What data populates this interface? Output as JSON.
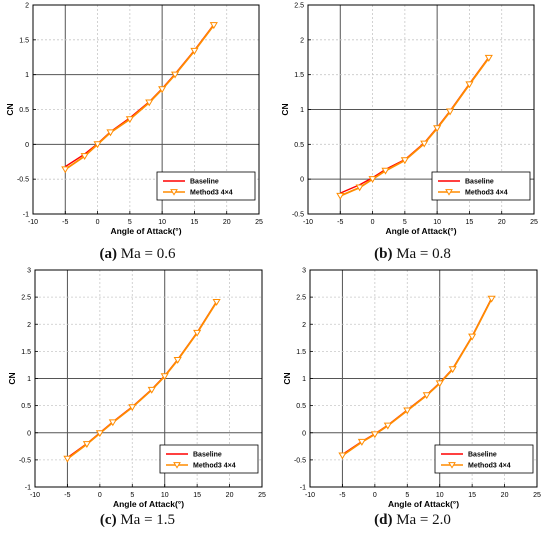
{
  "chart_data": [
    {
      "type": "line",
      "panel_tag": "a",
      "caption": "Ma = 0.6",
      "xlabel": "Angle of Attack(°)",
      "ylabel": "CN",
      "xlim": [
        -10,
        25
      ],
      "ylim": [
        -1,
        2
      ],
      "xticks": [
        -10,
        -5,
        0,
        5,
        10,
        15,
        20,
        25
      ],
      "yticks": [
        -1,
        -0.5,
        0,
        0.5,
        1,
        1.5,
        2
      ],
      "tick_labels_y": [
        "-1",
        "-0.5",
        "0",
        "0.5",
        "1",
        "1.5",
        "2"
      ],
      "grid": true,
      "legend_position": "bottom-right",
      "series": [
        {
          "name": "Baseline",
          "color": "#ff0000",
          "marker": "none",
          "x": [
            -5,
            -2,
            0,
            2,
            5,
            8,
            10,
            12,
            15,
            18
          ],
          "y": [
            -0.32,
            -0.14,
            0.01,
            0.18,
            0.38,
            0.61,
            0.8,
            1.01,
            1.35,
            1.72
          ]
        },
        {
          "name": "Method3 4×4",
          "color": "#ff8c00",
          "marker": "triangle-down",
          "x": [
            -5,
            -2,
            0,
            2,
            5,
            8,
            10,
            12,
            15,
            18
          ],
          "y": [
            -0.36,
            -0.17,
            0.0,
            0.17,
            0.36,
            0.6,
            0.79,
            1.0,
            1.34,
            1.71
          ]
        }
      ]
    },
    {
      "type": "line",
      "panel_tag": "b",
      "caption": "Ma = 0.8",
      "xlabel": "Angle of Attack(°)",
      "ylabel": "CN",
      "xlim": [
        -10,
        25
      ],
      "ylim": [
        -0.5,
        2.5
      ],
      "xticks": [
        -10,
        -5,
        0,
        5,
        10,
        15,
        20,
        25
      ],
      "yticks": [
        -0.5,
        0,
        0.5,
        1,
        1.5,
        2,
        2.5
      ],
      "tick_labels_y": [
        "-0.5",
        "0",
        "0.5",
        "1",
        "1.5",
        "2",
        "2.5"
      ],
      "grid": true,
      "legend_position": "bottom-right",
      "series": [
        {
          "name": "Baseline",
          "color": "#ff0000",
          "marker": "none",
          "x": [
            -5,
            -2,
            0,
            2,
            5,
            8,
            10,
            12,
            15,
            18
          ],
          "y": [
            -0.2,
            -0.08,
            0.02,
            0.14,
            0.28,
            0.52,
            0.74,
            0.98,
            1.37,
            1.75
          ]
        },
        {
          "name": "Method3 4×4",
          "color": "#ff8c00",
          "marker": "triangle-down",
          "x": [
            -5,
            -2,
            0,
            2,
            5,
            8,
            10,
            12,
            15,
            18
          ],
          "y": [
            -0.24,
            -0.12,
            0.0,
            0.12,
            0.27,
            0.51,
            0.73,
            0.97,
            1.36,
            1.74
          ]
        }
      ]
    },
    {
      "type": "line",
      "panel_tag": "c",
      "caption": "Ma = 1.5",
      "xlabel": "Angle of Attack(°)",
      "ylabel": "CN",
      "xlim": [
        -10,
        25
      ],
      "ylim": [
        -1,
        3
      ],
      "xticks": [
        -10,
        -5,
        0,
        5,
        10,
        15,
        20,
        25
      ],
      "yticks": [
        -1,
        -0.5,
        0,
        0.5,
        1,
        1.5,
        2,
        2.5,
        3
      ],
      "tick_labels_y": [
        "-1",
        "-0.5",
        "0",
        "0.5",
        "1",
        "1.5",
        "2",
        "2.5",
        "3"
      ],
      "grid": true,
      "legend_position": "bottom-right",
      "series": [
        {
          "name": "Baseline",
          "color": "#ff0000",
          "marker": "none",
          "x": [
            -5,
            -2,
            0,
            2,
            5,
            8,
            10,
            12,
            15,
            18
          ],
          "y": [
            -0.46,
            -0.2,
            0.0,
            0.2,
            0.48,
            0.8,
            1.05,
            1.35,
            1.85,
            2.42
          ]
        },
        {
          "name": "Method3 4×4",
          "color": "#ff8c00",
          "marker": "triangle-down",
          "x": [
            -5,
            -2,
            0,
            2,
            5,
            8,
            10,
            12,
            15,
            18
          ],
          "y": [
            -0.48,
            -0.21,
            -0.01,
            0.19,
            0.47,
            0.79,
            1.04,
            1.34,
            1.84,
            2.41
          ]
        }
      ]
    },
    {
      "type": "line",
      "panel_tag": "d",
      "caption": "Ma = 2.0",
      "xlabel": "Angle of Attack(°)",
      "ylabel": "CN",
      "xlim": [
        -10,
        25
      ],
      "ylim": [
        -1,
        3
      ],
      "xticks": [
        -10,
        -5,
        0,
        5,
        10,
        15,
        20,
        25
      ],
      "yticks": [
        -1,
        -0.5,
        0,
        0.5,
        1,
        1.5,
        2,
        2.5,
        3
      ],
      "tick_labels_y": [
        "-1",
        "-0.5",
        "0",
        "0.5",
        "1",
        "1.5",
        "2",
        "2.5",
        "3"
      ],
      "grid": true,
      "legend_position": "bottom-right",
      "series": [
        {
          "name": "Baseline",
          "color": "#ff0000",
          "marker": "none",
          "x": [
            -5,
            -2,
            0,
            2,
            5,
            8,
            10,
            12,
            15,
            18
          ],
          "y": [
            -0.4,
            -0.16,
            -0.02,
            0.14,
            0.42,
            0.7,
            0.92,
            1.18,
            1.78,
            2.48
          ]
        },
        {
          "name": "Method3 4×4",
          "color": "#ff8c00",
          "marker": "triangle-down",
          "x": [
            -5,
            -2,
            0,
            2,
            5,
            8,
            10,
            12,
            15,
            18
          ],
          "y": [
            -0.42,
            -0.17,
            -0.03,
            0.13,
            0.41,
            0.69,
            0.91,
            1.17,
            1.77,
            2.47
          ]
        }
      ]
    }
  ]
}
